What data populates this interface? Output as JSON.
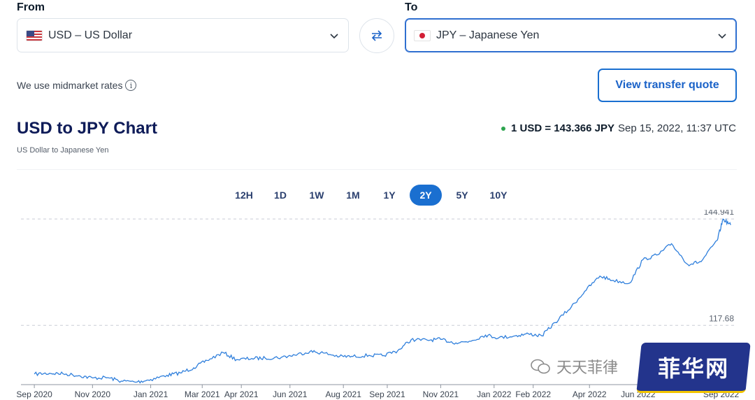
{
  "converter": {
    "from_label": "From",
    "to_label": "To",
    "from_currency": "USD – US Dollar",
    "to_currency": "JPY – Japanese Yen"
  },
  "midmarket_text": "We use midmarket rates",
  "info_glyph": "i",
  "quote_button": "View transfer quote",
  "chart_title": "USD to JPY Chart",
  "chart_subtitle": "US Dollar to Japanese Yen",
  "current_rate": {
    "value": "1 USD = 143.366 JPY",
    "timestamp": "Sep 15, 2022, 11:37 UTC"
  },
  "ranges": [
    "12H",
    "1D",
    "1W",
    "1M",
    "1Y",
    "2Y",
    "5Y",
    "10Y"
  ],
  "selected_range": "2Y",
  "watermark": {
    "text": "天天菲律",
    "badge": "菲华网"
  },
  "colors": {
    "accent": "#1a6fd0",
    "line": "#2f7fdc",
    "title": "#0e1b58",
    "live_dot": "#2da44e",
    "watermark_badge": "#23348c"
  },
  "chart_data": {
    "type": "line",
    "title": "USD to JPY Chart",
    "xlabel": "",
    "ylabel": "",
    "x_ticks": [
      "Sep 2020",
      "Nov 2020",
      "Jan 2021",
      "Mar 2021",
      "Apr 2021",
      "Jun 2021",
      "Aug 2021",
      "Sep 2021",
      "Nov 2021",
      "Jan 2022",
      "Feb 2022",
      "Apr 2022",
      "Jun 2022",
      "Sep 2022"
    ],
    "reference_lines": [
      144.941,
      117.68
    ],
    "ylim": [
      102.5,
      145.5
    ],
    "grid": false,
    "series": [
      {
        "x": [
          "2020-09-15",
          "2020-10-01",
          "2020-10-15",
          "2020-11-01",
          "2020-11-15",
          "2020-12-01",
          "2020-12-15",
          "2021-01-01",
          "2021-01-15",
          "2021-02-01",
          "2021-02-15",
          "2021-03-01",
          "2021-03-15",
          "2021-04-01",
          "2021-04-15",
          "2021-05-01",
          "2021-05-15",
          "2021-06-01",
          "2021-06-15",
          "2021-07-01",
          "2021-07-15",
          "2021-08-01",
          "2021-08-15",
          "2021-09-01",
          "2021-09-15",
          "2021-10-01",
          "2021-10-15",
          "2021-11-01",
          "2021-11-15",
          "2021-12-01",
          "2021-12-15",
          "2022-01-01",
          "2022-01-15",
          "2022-02-01",
          "2022-02-15",
          "2022-03-01",
          "2022-03-15",
          "2022-04-01",
          "2022-04-15",
          "2022-05-01",
          "2022-05-15",
          "2022-06-01",
          "2022-06-15",
          "2022-07-01",
          "2022-07-15",
          "2022-08-01",
          "2022-08-15",
          "2022-09-01",
          "2022-09-07",
          "2022-09-15"
        ],
        "y": [
          105.2,
          105.4,
          105.3,
          104.8,
          104.2,
          104.3,
          103.4,
          103.2,
          103.8,
          104.9,
          105.5,
          106.8,
          108.7,
          110.7,
          108.9,
          109.2,
          109.3,
          109.5,
          110.1,
          111.0,
          110.6,
          109.7,
          109.7,
          110.0,
          109.9,
          111.2,
          114.0,
          113.9,
          114.1,
          113.2,
          113.6,
          115.2,
          114.5,
          115.0,
          115.5,
          115.0,
          118.4,
          122.4,
          126.4,
          130.3,
          129.2,
          128.5,
          134.5,
          135.8,
          138.6,
          133.3,
          134.0,
          139.5,
          144.9,
          143.4
        ]
      }
    ]
  }
}
